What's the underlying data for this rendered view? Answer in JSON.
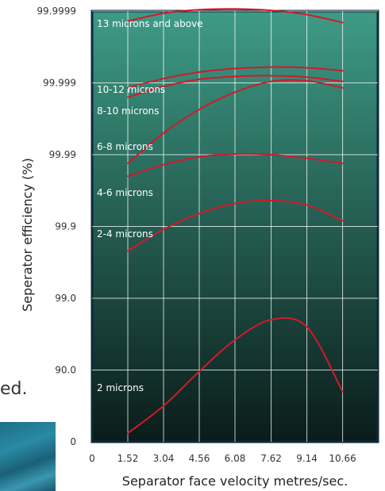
{
  "background_text": "ed.",
  "chart_data": {
    "type": "line",
    "xlabel": "Separator face velocity metres/sec.",
    "ylabel": "Seperator efficiency (%)",
    "x_ticks": [
      "0",
      "1.52",
      "3.04",
      "4.56",
      "6.08",
      "7.62",
      "9.14",
      "10.66"
    ],
    "y_ticks": [
      "0",
      "90.0",
      "99.0",
      "99.9",
      "99.99",
      "99.999",
      "99.9999"
    ],
    "series": [
      {
        "name": "13 microns and above",
        "x": [
          1.52,
          3.04,
          4.56,
          6.08,
          7.62,
          9.14,
          10.66
        ],
        "y": [
          5.86,
          5.97,
          6.02,
          6.03,
          6.01,
          5.95,
          5.84
        ]
      },
      {
        "name": "10-12 microns",
        "x": [
          1.52,
          3.04,
          4.56,
          6.08,
          7.62,
          9.14,
          10.66
        ],
        "y": [
          4.93,
          5.06,
          5.15,
          5.2,
          5.22,
          5.21,
          5.17
        ]
      },
      {
        "name": "8-10 microns",
        "x": [
          1.52,
          3.04,
          4.56,
          6.08,
          7.62,
          9.14,
          10.66
        ],
        "y": [
          4.8,
          4.95,
          5.05,
          5.09,
          5.1,
          5.08,
          5.02
        ]
      },
      {
        "name": "6-8 microns",
        "x": [
          1.52,
          3.04,
          4.56,
          6.08,
          7.62,
          9.14,
          10.66
        ],
        "y": [
          3.88,
          4.3,
          4.63,
          4.87,
          5.02,
          5.03,
          4.93
        ]
      },
      {
        "name": "4-6 microns",
        "x": [
          1.52,
          3.04,
          4.56,
          6.08,
          7.62,
          9.14,
          10.66
        ],
        "y": [
          3.7,
          3.86,
          3.97,
          4.01,
          4.0,
          3.95,
          3.88
        ]
      },
      {
        "name": "2-4 microns",
        "x": [
          1.52,
          3.04,
          4.56,
          6.08,
          7.62,
          9.14,
          10.66
        ],
        "y": [
          2.66,
          2.96,
          3.18,
          3.32,
          3.36,
          3.3,
          3.08
        ]
      },
      {
        "name": "2 microns",
        "x": [
          1.52,
          3.04,
          4.56,
          6.08,
          7.62,
          9.14,
          10.66
        ],
        "y": [
          0.12,
          0.5,
          0.98,
          1.42,
          1.7,
          1.6,
          0.7
        ]
      }
    ],
    "ylim": [
      0,
      6
    ],
    "xlim": [
      0,
      12.16
    ],
    "grid": true,
    "colors": {
      "line": "#d21a2b",
      "grid": "#ffffff",
      "frame": "#0d2a3a",
      "bg_top": "#3e9b86",
      "bg_bottom": "#0a1c1a"
    }
  }
}
